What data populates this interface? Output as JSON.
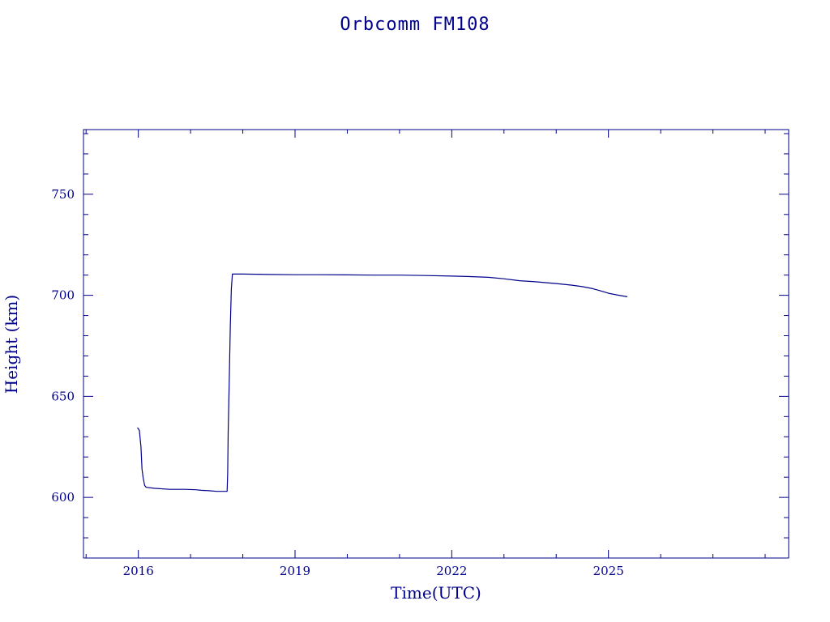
{
  "chart_data": {
    "type": "line",
    "title": "Orbcomm FM108",
    "xlabel": "Time(UTC)",
    "ylabel": "Height (km)",
    "xlim": [
      2014.95,
      2028.45
    ],
    "ylim": [
      570,
      782
    ],
    "x_ticks": [
      2016,
      2019,
      2022,
      2025
    ],
    "x_tick_labels": [
      "2016",
      "2019",
      "2022",
      "2025"
    ],
    "y_ticks": [
      600,
      650,
      700,
      750
    ],
    "y_tick_labels": [
      "600",
      "650",
      "700",
      "750"
    ],
    "grid": false,
    "color": "#00008b",
    "series": [
      {
        "x": [
          2015.98,
          2016.0,
          2016.02,
          2016.05,
          2016.07,
          2016.09,
          2016.12,
          2016.15,
          2016.16,
          2016.3,
          2016.6,
          2016.9,
          2017.1,
          2017.2,
          2017.35,
          2017.5,
          2017.62,
          2017.7,
          2017.71,
          2017.72,
          2017.74,
          2017.76,
          2017.78,
          2017.8,
          2018.0,
          2018.5,
          2019.0,
          2019.5,
          2020.0,
          2020.5,
          2021.0,
          2021.5,
          2022.0,
          2022.3,
          2022.7,
          2023.0,
          2023.3,
          2023.6,
          2024.0,
          2024.3,
          2024.5,
          2024.7,
          2024.9,
          2025.0,
          2025.2,
          2025.36
        ],
        "y": [
          634.5,
          634.0,
          633.0,
          625,
          614,
          610,
          606,
          605,
          605,
          604.5,
          604,
          604,
          603.8,
          603.5,
          603.3,
          603,
          603,
          603,
          612,
          632,
          657,
          684,
          703,
          710.5,
          710.5,
          710.3,
          710.2,
          710.2,
          710.1,
          710.0,
          710.0,
          709.8,
          709.5,
          709.3,
          708.9,
          708.2,
          707.2,
          706.7,
          705.8,
          705.0,
          704.3,
          703.3,
          701.8,
          701.0,
          700.0,
          699.3
        ]
      }
    ]
  }
}
